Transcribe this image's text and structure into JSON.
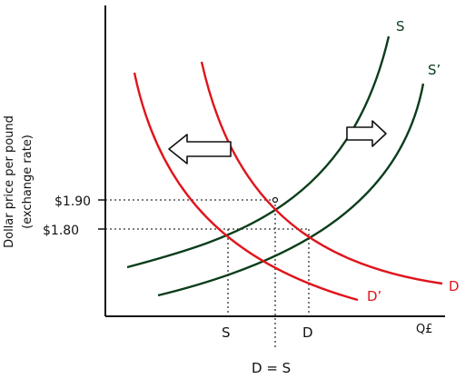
{
  "colors": {
    "supply": "#0b3d1a",
    "demand": "#e0141b",
    "axis": "#111111",
    "dotted": "#333333",
    "arrow_fill": "#ffffff"
  },
  "labels": {
    "y_axis_line1": "Dollar price per pound",
    "y_axis_line2": "(exchange rate)",
    "price_high": "$1.90",
    "price_low": "$1.80",
    "supply": "S",
    "supply_shifted": "S’",
    "demand": "D",
    "demand_shifted": "D’",
    "x_axis": "Q£",
    "tick_s": "S",
    "tick_d": "D",
    "equation": "D = S"
  },
  "arrows": {
    "left": "shift-left",
    "right": "shift-right"
  }
}
